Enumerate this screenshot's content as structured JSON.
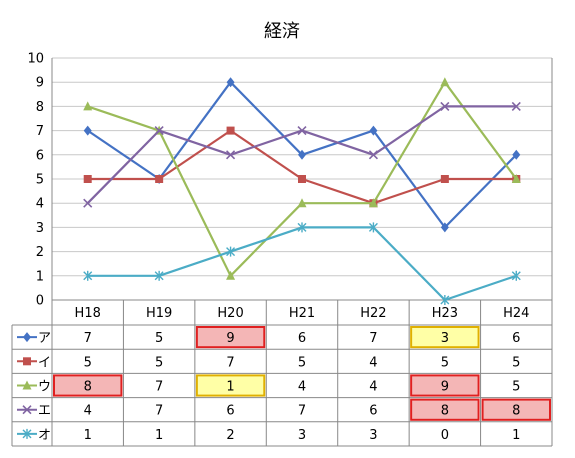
{
  "chart_data": {
    "type": "line",
    "title": "経済",
    "categories": [
      "H18",
      "H19",
      "H20",
      "H21",
      "H22",
      "H23",
      "H24"
    ],
    "ylim": [
      0,
      10
    ],
    "yticks": [
      0,
      1,
      2,
      3,
      4,
      5,
      6,
      7,
      8,
      9,
      10
    ],
    "grid": true,
    "legend": "data-table",
    "series": [
      {
        "name": "ア",
        "color": "#4472C4",
        "marker": "diamond",
        "values": [
          7,
          5,
          9,
          6,
          7,
          3,
          6
        ]
      },
      {
        "name": "イ",
        "color": "#C0504D",
        "marker": "square",
        "values": [
          5,
          5,
          7,
          5,
          4,
          5,
          5
        ]
      },
      {
        "name": "ウ",
        "color": "#9BBB59",
        "marker": "triangle",
        "values": [
          8,
          7,
          1,
          4,
          4,
          9,
          5
        ]
      },
      {
        "name": "エ",
        "color": "#8064A2",
        "marker": "x",
        "values": [
          4,
          7,
          6,
          7,
          6,
          8,
          8
        ]
      },
      {
        "name": "オ",
        "color": "#4BACC6",
        "marker": "star",
        "values": [
          1,
          1,
          2,
          3,
          3,
          0,
          1
        ]
      }
    ],
    "highlights": [
      {
        "series": 0,
        "index": 2,
        "style": "high"
      },
      {
        "series": 0,
        "index": 5,
        "style": "low"
      },
      {
        "series": 2,
        "index": 0,
        "style": "high"
      },
      {
        "series": 2,
        "index": 2,
        "style": "low"
      },
      {
        "series": 2,
        "index": 5,
        "style": "high"
      },
      {
        "series": 3,
        "index": 5,
        "style": "high"
      },
      {
        "series": 3,
        "index": 6,
        "style": "high"
      }
    ],
    "highlight_colors": {
      "high_fill": "#F4B6B6",
      "high_border": "#E02020",
      "low_fill": "#FFFFA6",
      "low_border": "#E0B000"
    }
  }
}
